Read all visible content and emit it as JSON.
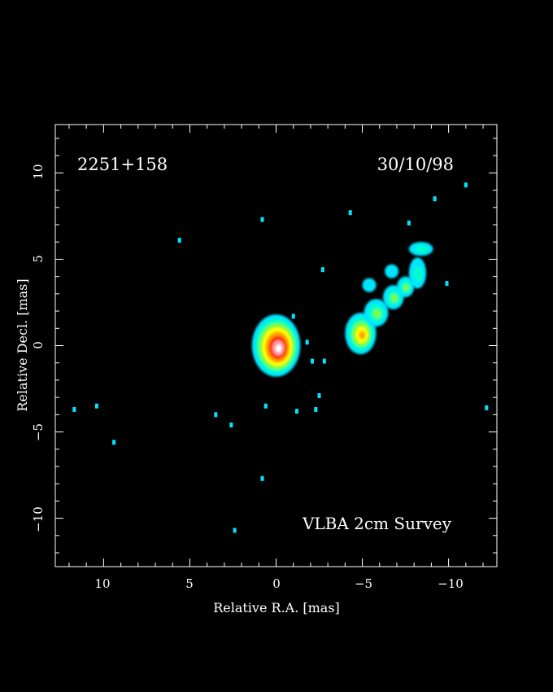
{
  "source_name": "2251+158",
  "epoch": "30/10/98",
  "survey": "VLBA 2cm Survey",
  "axes": {
    "xlabel": "Relative R.A. [mas]",
    "ylabel": "Relative Decl. [mas]",
    "x_range": [
      12.8,
      -12.8
    ],
    "y_range": [
      -12.8,
      12.8
    ],
    "x_ticks": [
      10,
      5,
      0,
      -5,
      -10
    ],
    "y_ticks": [
      10,
      5,
      0,
      -5,
      -10
    ],
    "x_tick_labels": [
      "10",
      "5",
      "0",
      "−10"
    ],
    "y_tick_labels": [
      "10",
      "5",
      "0",
      "−5",
      "−10"
    ],
    "x_tick_label_minus5": "−5"
  },
  "colors": {
    "background": "#000000",
    "frame": "#ffffff",
    "colormap": [
      "#00e5ff",
      "#00ffc8",
      "#7aff3c",
      "#ffff00",
      "#ffa000",
      "#ff3000",
      "#ff9aa0",
      "#ffffff"
    ]
  },
  "image": {
    "core": {
      "ra": 0.0,
      "dec": 0.0,
      "ra_extent": 1.4,
      "dec_extent": 1.8,
      "peak_level": 8
    },
    "jet": [
      {
        "ra": -4.9,
        "dec": 0.7,
        "ra_extent": 0.9,
        "dec_extent": 1.2,
        "peak_level": 5
      },
      {
        "ra": -5.8,
        "dec": 1.9,
        "ra_extent": 0.7,
        "dec_extent": 0.8,
        "peak_level": 3
      },
      {
        "ra": -6.8,
        "dec": 2.8,
        "ra_extent": 0.6,
        "dec_extent": 0.7,
        "peak_level": 3
      },
      {
        "ra": -7.5,
        "dec": 3.4,
        "ra_extent": 0.5,
        "dec_extent": 0.6,
        "peak_level": 3
      },
      {
        "ra": -8.2,
        "dec": 4.2,
        "ra_extent": 0.5,
        "dec_extent": 0.9,
        "peak_level": 2
      },
      {
        "ra": -8.4,
        "dec": 5.6,
        "ra_extent": 0.7,
        "dec_extent": 0.4,
        "peak_level": 2
      },
      {
        "ra": -5.4,
        "dec": 3.5,
        "ra_extent": 0.4,
        "dec_extent": 0.4,
        "peak_level": 1
      },
      {
        "ra": -6.7,
        "dec": 4.3,
        "ra_extent": 0.4,
        "dec_extent": 0.4,
        "peak_level": 1
      }
    ],
    "specks": [
      [
        0.8,
        7.3
      ],
      [
        -4.3,
        7.7
      ],
      [
        -7.7,
        7.1
      ],
      [
        -11.0,
        9.3
      ],
      [
        -9.2,
        8.5
      ],
      [
        -2.7,
        4.4
      ],
      [
        -9.9,
        3.6
      ],
      [
        -1.0,
        1.7
      ],
      [
        -1.8,
        0.2
      ],
      [
        -2.1,
        -0.9
      ],
      [
        -2.8,
        -0.9
      ],
      [
        -2.5,
        -2.9
      ],
      [
        -2.3,
        -3.7
      ],
      [
        0.6,
        -3.5
      ],
      [
        -1.2,
        -3.8
      ],
      [
        10.4,
        -3.5
      ],
      [
        11.7,
        -3.7
      ],
      [
        3.5,
        -4.0
      ],
      [
        2.6,
        -4.6
      ],
      [
        9.4,
        -5.6
      ],
      [
        0.8,
        -7.7
      ],
      [
        2.4,
        -10.7
      ],
      [
        -12.2,
        -3.6
      ],
      [
        5.6,
        6.1
      ]
    ]
  }
}
